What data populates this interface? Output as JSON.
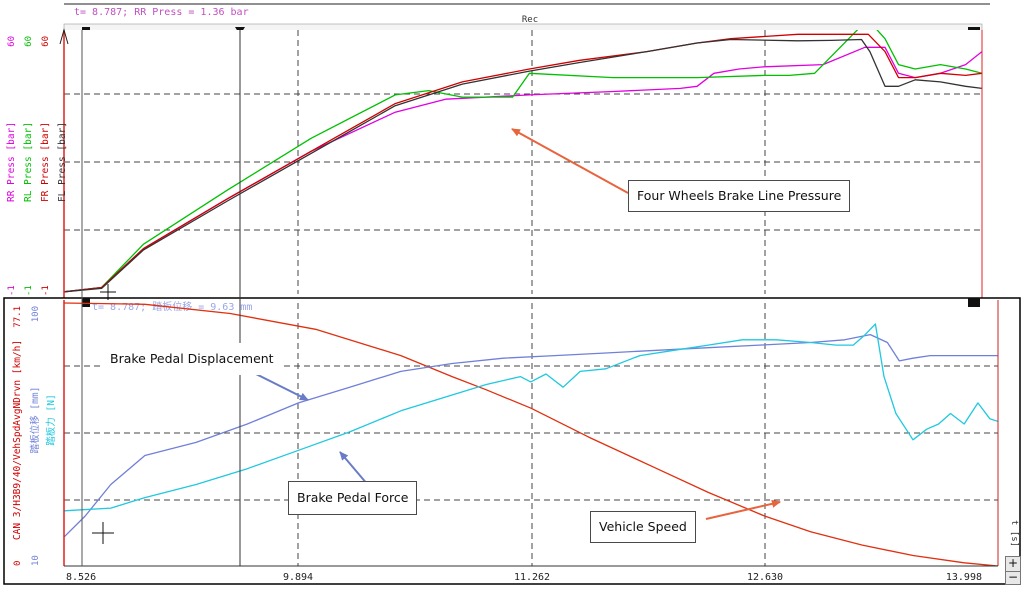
{
  "chart_data": [
    {
      "type": "line",
      "panel": "top",
      "cursor_readout": "t= 8.787; RR Press = 1.36 bar",
      "header_label": "Rec",
      "y_tick_labels": {
        "top": "60",
        "bottom": "-1"
      },
      "ylabels": [
        {
          "text": "RR Press [bar]",
          "color": "#e000e0"
        },
        {
          "text": "RL Press [bar]",
          "color": "#00c000"
        },
        {
          "text": "FR Press [bar]",
          "color": "#d00000"
        },
        {
          "text": "FL Press [bar]",
          "color": "#333333"
        }
      ],
      "xlim": [
        8.526,
        13.998
      ],
      "ylim": [
        -1,
        60
      ],
      "series": [
        {
          "name": "RR Press",
          "color": "#e000e0",
          "x": [
            8.526,
            8.75,
            9.0,
            9.5,
            10.0,
            10.5,
            10.8,
            11.3,
            11.8,
            12.2,
            12.3,
            12.4,
            12.55,
            12.7,
            13.05,
            13.3,
            13.42,
            13.5,
            13.6,
            13.75,
            13.9,
            13.998
          ],
          "y": [
            -0.5,
            0.5,
            9.5,
            21,
            32,
            41,
            44,
            45,
            45.8,
            46.5,
            47,
            50,
            51,
            51.5,
            52,
            56,
            56,
            50,
            49,
            50,
            52,
            55
          ]
        },
        {
          "name": "RL Press",
          "color": "#00c000",
          "x": [
            8.526,
            8.75,
            9.0,
            9.5,
            10.0,
            10.5,
            10.7,
            10.9,
            11.2,
            11.3,
            11.8,
            12.3,
            12.7,
            12.85,
            13.0,
            13.28,
            13.35,
            13.42,
            13.5,
            13.6,
            13.75,
            13.9,
            13.998
          ],
          "y": [
            -0.5,
            0.5,
            10.5,
            23,
            35,
            45,
            46,
            44.5,
            44.5,
            50,
            49,
            49,
            49.5,
            49.5,
            50,
            61,
            61,
            58,
            52,
            51,
            52,
            51,
            50
          ]
        },
        {
          "name": "FR Press",
          "color": "#d00000",
          "x": [
            8.526,
            8.75,
            9.0,
            9.5,
            10.0,
            10.5,
            10.9,
            11.3,
            11.6,
            12.0,
            12.3,
            12.5,
            12.9,
            13.05,
            13.32,
            13.42,
            13.5,
            13.6,
            13.75,
            13.9,
            13.998
          ],
          "y": [
            -0.5,
            0.5,
            9.5,
            21,
            32,
            43,
            48,
            51,
            53,
            55,
            57,
            58,
            59,
            59,
            59,
            55,
            49,
            49,
            50,
            49.5,
            50
          ]
        },
        {
          "name": "FL Press",
          "color": "#333333",
          "x": [
            8.526,
            8.75,
            9.0,
            9.5,
            10.0,
            10.5,
            10.9,
            11.3,
            11.6,
            12.0,
            12.3,
            12.5,
            12.9,
            13.1,
            13.28,
            13.33,
            13.42,
            13.5,
            13.6,
            13.75,
            13.9,
            13.998
          ],
          "y": [
            -0.5,
            0.3,
            9.2,
            20.5,
            31.5,
            42.5,
            47.5,
            50.5,
            52.5,
            55,
            57,
            57.8,
            57.5,
            57.6,
            57.8,
            55,
            47,
            47,
            48.5,
            48,
            47,
            46.5
          ]
        }
      ]
    },
    {
      "type": "line",
      "panel": "bottom",
      "cursor_readout": "t= 8.787; 踏板位移 = 9.63 mm",
      "y_tick_labels": {
        "top": "77.1",
        "top_right": "100",
        "bottom": "0",
        "bottom_right": "10"
      },
      "ylabels": [
        {
          "text": "CAN 3/H3B9/40/VehSpdAvgNDrvn [km/h]",
          "color": "#d00000"
        },
        {
          "text": "踏板位移 [mm]",
          "color": "#7080d8"
        },
        {
          "text": "踏板力 [N]",
          "color": "#20c8e0"
        }
      ],
      "xlim": [
        8.526,
        13.998
      ],
      "x_tick_labels": [
        "8.526",
        "9.894",
        "11.262",
        "12.630",
        "13.998"
      ],
      "x_unit": "t [s]",
      "ylim": [
        0,
        100
      ],
      "series": [
        {
          "name": "Vehicle Speed",
          "color": "#e03010",
          "x": [
            8.526,
            9.0,
            9.5,
            10.0,
            10.5,
            10.8,
            11.0,
            11.262,
            11.6,
            12.0,
            12.3,
            12.63,
            12.9,
            13.2,
            13.5,
            13.8,
            13.998
          ],
          "y": [
            100,
            99.5,
            96,
            90,
            80,
            72,
            67,
            60,
            49,
            37,
            28,
            19,
            13,
            8,
            4,
            1.2,
            0
          ]
        },
        {
          "name": "Brake Pedal Displacement",
          "color": "#7080d8",
          "x": [
            8.526,
            8.65,
            8.8,
            9.0,
            9.3,
            9.6,
            9.9,
            10.2,
            10.5,
            10.8,
            11.1,
            11.4,
            11.7,
            12.0,
            12.3,
            12.6,
            12.9,
            13.1,
            13.25,
            13.35,
            13.42,
            13.5,
            13.6,
            13.7,
            13.8,
            13.998
          ],
          "y": [
            11,
            19,
            31,
            42,
            47,
            54,
            62,
            68,
            74,
            77,
            79,
            80,
            81,
            82,
            83,
            84,
            85,
            86,
            88,
            85,
            78,
            79,
            80,
            80,
            80,
            80
          ]
        },
        {
          "name": "Brake Pedal Force",
          "color": "#20c8e0",
          "x": [
            8.526,
            8.8,
            9.0,
            9.3,
            9.6,
            9.9,
            10.2,
            10.5,
            10.8,
            11.0,
            11.2,
            11.26,
            11.35,
            11.45,
            11.55,
            11.7,
            11.9,
            12.1,
            12.3,
            12.5,
            12.7,
            12.9,
            13.05,
            13.15,
            13.22,
            13.28,
            13.33,
            13.4,
            13.5,
            13.58,
            13.65,
            13.72,
            13.8,
            13.88,
            13.95,
            13.998
          ],
          "y": [
            21,
            22,
            26,
            31,
            37,
            44,
            51,
            59,
            65,
            69,
            72,
            70,
            73,
            68,
            74,
            75,
            80,
            82,
            84,
            86,
            86,
            85,
            84,
            84,
            88,
            92,
            72,
            58,
            48,
            52,
            54,
            58,
            54,
            62,
            56,
            55
          ]
        }
      ]
    }
  ],
  "annotations": {
    "four_wheels": "Four Wheels Brake Line Pressure",
    "pedal_displacement": "Brake Pedal Displacement",
    "pedal_force": "Brake Pedal Force",
    "vehicle_speed": "Vehicle Speed"
  },
  "zoom": {
    "plus": "+",
    "minus": "−"
  }
}
